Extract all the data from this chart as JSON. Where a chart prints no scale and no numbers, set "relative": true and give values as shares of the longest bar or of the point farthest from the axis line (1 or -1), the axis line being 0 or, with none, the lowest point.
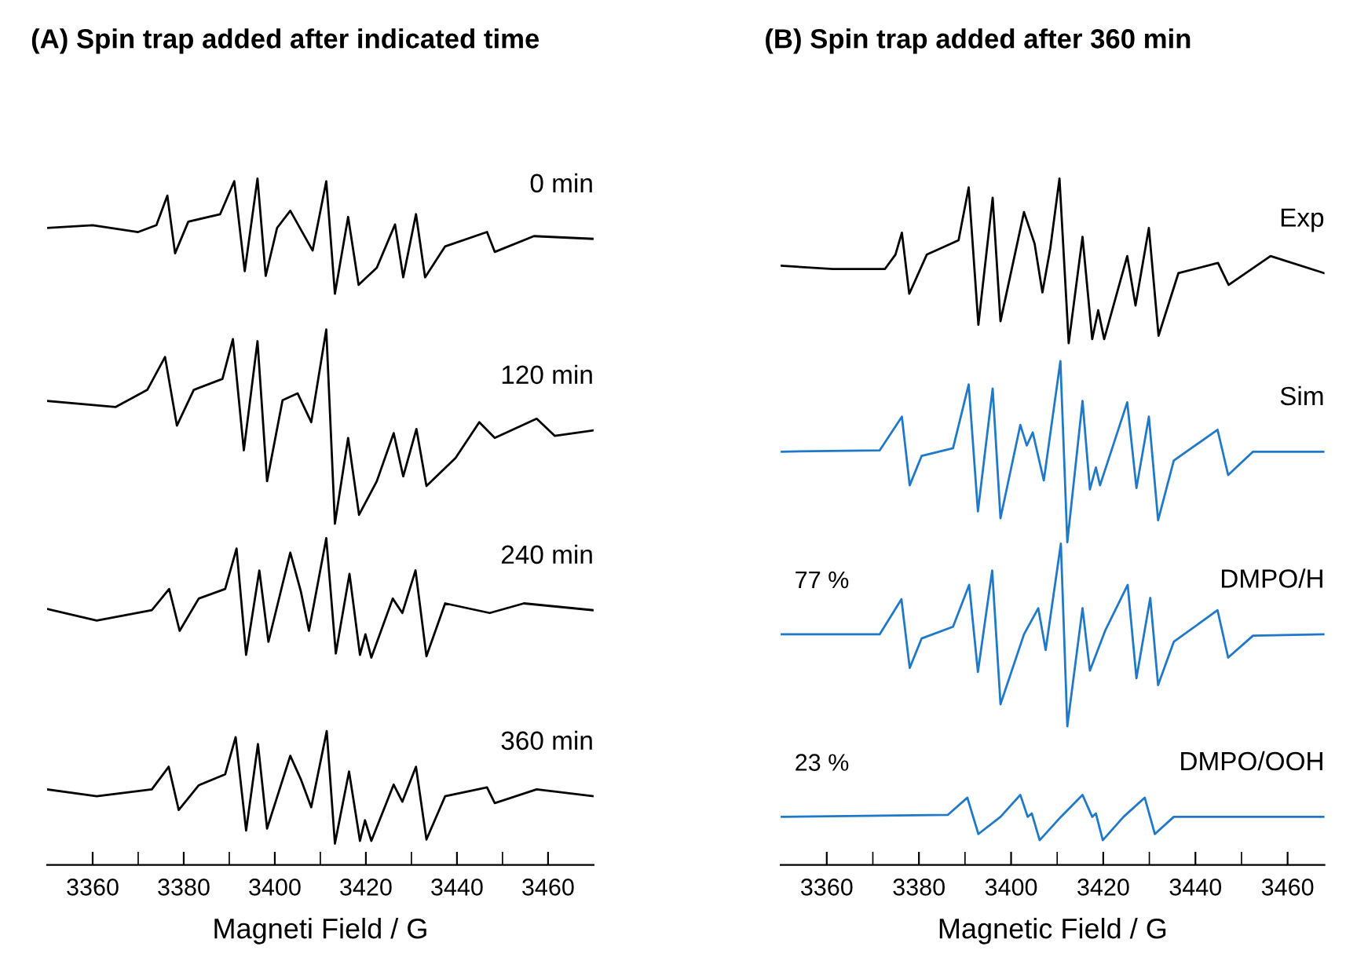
{
  "chart_data": [
    {
      "type": "line",
      "title": "(A) Spin trap added after indicated time",
      "xlabel": "Magneti Field / G",
      "relative": true,
      "tick_labels": "x",
      "grid": false,
      "legend": false,
      "xlim": [
        3350,
        3470
      ],
      "xticks": [
        3360,
        {
          "value": 3370,
          "label": null
        },
        3380,
        {
          "value": 3390,
          "label": null
        },
        3400,
        {
          "value": 3410,
          "label": null
        },
        3420,
        {
          "value": 3430,
          "label": null
        },
        3440,
        {
          "value": 3450,
          "label": null
        },
        3460
      ],
      "series": [
        {
          "name": "0 min",
          "color": "#000000",
          "x": [
            3350,
            3360,
            3370,
            3374,
            3376.4,
            3378.1,
            3381,
            3388,
            3391.1,
            3393.4,
            3396.2,
            3398.0,
            3400.5,
            3403.4,
            3408.3,
            3411.3,
            3413.2,
            3416.1,
            3418.4,
            3422.4,
            3426.4,
            3428.2,
            3431.0,
            3433.0,
            3437.4,
            3446.6,
            3448.3,
            3456.9,
            3470
          ],
          "values": [
            0.928,
            0.932,
            0.922,
            0.932,
            0.975,
            0.891,
            0.937,
            0.948,
            0.996,
            0.865,
            1.0,
            0.858,
            0.928,
            0.953,
            0.895,
            0.996,
            0.832,
            0.944,
            0.845,
            0.87,
            0.933,
            0.856,
            0.948,
            0.856,
            0.901,
            0.922,
            0.893,
            0.916,
            0.912
          ]
        },
        {
          "name": "120 min",
          "color": "#000000",
          "x": [
            3350,
            3365,
            3372,
            3375.9,
            3378.5,
            3382.2,
            3388.5,
            3390.8,
            3393.2,
            3396.2,
            3398.3,
            3401.7,
            3405.0,
            3408.0,
            3411.3,
            3413.2,
            3416.1,
            3418.5,
            3422.4,
            3426.1,
            3428.2,
            3431.1,
            3433.3,
            3439.7,
            3444.9,
            3448.3,
            3457.5,
            3461.5,
            3470
          ],
          "values": [
            0.676,
            0.667,
            0.692,
            0.74,
            0.64,
            0.692,
            0.708,
            0.766,
            0.604,
            0.763,
            0.559,
            0.677,
            0.687,
            0.645,
            0.78,
            0.497,
            0.622,
            0.51,
            0.559,
            0.629,
            0.566,
            0.635,
            0.552,
            0.593,
            0.645,
            0.622,
            0.65,
            0.625,
            0.633
          ]
        },
        {
          "name": "240 min",
          "color": "#000000",
          "x": [
            3350,
            3360.9,
            3373,
            3376.8,
            3379.1,
            3383.3,
            3389.1,
            3391.6,
            3393.7,
            3396.6,
            3398.6,
            3403.4,
            3405.7,
            3407.5,
            3411.3,
            3413.4,
            3416.4,
            3418.7,
            3419.9,
            3421.2,
            3425.9,
            3428.0,
            3430.9,
            3433.3,
            3437.4,
            3447.2,
            3454.7,
            3470
          ],
          "values": [
            0.373,
            0.356,
            0.371,
            0.402,
            0.341,
            0.388,
            0.402,
            0.461,
            0.306,
            0.429,
            0.325,
            0.455,
            0.399,
            0.341,
            0.476,
            0.308,
            0.424,
            0.306,
            0.336,
            0.302,
            0.388,
            0.367,
            0.429,
            0.304,
            0.381,
            0.367,
            0.381,
            0.371
          ]
        },
        {
          "name": "360 min",
          "color": "#000000",
          "x": [
            3350,
            3360.9,
            3373,
            3376.7,
            3378.9,
            3383.3,
            3389.1,
            3391.4,
            3393.7,
            3396.3,
            3398.3,
            3403.4,
            3405.7,
            3408.0,
            3411.4,
            3413.2,
            3416.3,
            3418.7,
            3419.8,
            3421.2,
            3426.1,
            3428.0,
            3431.0,
            3433.3,
            3437.4,
            3446.6,
            3448.3,
            3457.5,
            3470
          ],
          "values": [
            0.11,
            0.1,
            0.11,
            0.143,
            0.08,
            0.116,
            0.132,
            0.186,
            0.05,
            0.176,
            0.053,
            0.159,
            0.125,
            0.084,
            0.195,
            0.031,
            0.136,
            0.035,
            0.065,
            0.035,
            0.117,
            0.092,
            0.143,
            0.037,
            0.1,
            0.113,
            0.09,
            0.11,
            0.1
          ]
        }
      ]
    },
    {
      "type": "line",
      "title": "(B) Spin trap added after 360 min",
      "xlabel": "Magnetic Field / G",
      "relative": true,
      "tick_labels": "x",
      "grid": false,
      "legend": false,
      "xlim": [
        3350,
        3468
      ],
      "xticks": [
        3360,
        {
          "value": 3370,
          "label": null
        },
        3380,
        {
          "value": 3390,
          "label": null
        },
        3400,
        {
          "value": 3410,
          "label": null
        },
        3420,
        {
          "value": 3430,
          "label": null
        },
        3440,
        {
          "value": 3450,
          "label": null
        },
        3460
      ],
      "annotations": [
        "77 %",
        "23 %"
      ],
      "series": [
        {
          "name": "Exp",
          "color": "#000000",
          "x": [
            3350,
            3361.3,
            3372.6,
            3374.9,
            3376.3,
            3377.9,
            3381.7,
            3388.6,
            3390.8,
            3392.9,
            3396.0,
            3397.7,
            3402.8,
            3405.1,
            3406.8,
            3408.5,
            3410.5,
            3412.5,
            3415.5,
            3417.6,
            3418.9,
            3420.2,
            3425.2,
            3427.0,
            3429.9,
            3432.0,
            3436.3,
            3444.9,
            3447.2,
            3456.3,
            3468
          ],
          "values": [
            0.873,
            0.868,
            0.868,
            0.889,
            0.921,
            0.832,
            0.889,
            0.91,
            0.987,
            0.787,
            0.972,
            0.792,
            0.951,
            0.905,
            0.834,
            0.898,
            1.0,
            0.76,
            0.915,
            0.766,
            0.808,
            0.766,
            0.887,
            0.815,
            0.928,
            0.771,
            0.862,
            0.877,
            0.845,
            0.887,
            0.862
          ]
        },
        {
          "name": "Sim",
          "color": "#1f78c8",
          "x": [
            3350,
            3371.5,
            3376.3,
            3378.0,
            3380.6,
            3387.4,
            3390.8,
            3392.8,
            3396.0,
            3397.7,
            3402.0,
            3403.4,
            3404.7,
            3407.1,
            3410.7,
            3412.2,
            3415.5,
            3417.1,
            3418.4,
            3419.3,
            3425.2,
            3427.2,
            3429.9,
            3431.9,
            3435.3,
            3444.8,
            3447.1,
            3452.5,
            3468
          ],
          "values": [
            0.602,
            0.604,
            0.653,
            0.553,
            0.596,
            0.607,
            0.7,
            0.515,
            0.694,
            0.505,
            0.641,
            0.611,
            0.63,
            0.56,
            0.734,
            0.47,
            0.676,
            0.547,
            0.579,
            0.553,
            0.674,
            0.549,
            0.653,
            0.502,
            0.589,
            0.634,
            0.568,
            0.602,
            0.602
          ]
        },
        {
          "name": "DMPO/H",
          "color": "#1f78c8",
          "x": [
            3350,
            3371.5,
            3376.2,
            3378.0,
            3380.6,
            3387.4,
            3390.9,
            3392.8,
            3395.9,
            3397.7,
            3402.8,
            3405.9,
            3407.5,
            3410.8,
            3412.2,
            3415.5,
            3417.1,
            3420.4,
            3425.3,
            3427.2,
            3430.2,
            3431.9,
            3435.3,
            3444.8,
            3447.1,
            3452.5,
            3468
          ],
          "values": [
            0.336,
            0.336,
            0.387,
            0.287,
            0.33,
            0.347,
            0.408,
            0.281,
            0.429,
            0.234,
            0.336,
            0.374,
            0.313,
            0.468,
            0.202,
            0.374,
            0.283,
            0.341,
            0.408,
            0.272,
            0.389,
            0.262,
            0.325,
            0.371,
            0.302,
            0.334,
            0.336
          ]
        },
        {
          "name": "DMPO/OOH",
          "color": "#1f78c8",
          "x": [
            3350,
            3386.3,
            3390.5,
            3392.9,
            3397.7,
            3402.0,
            3403.6,
            3404.5,
            3406.2,
            3410.8,
            3415.5,
            3417.6,
            3418.4,
            3419.9,
            3424.4,
            3429.0,
            3431.2,
            3435.3,
            3468
          ],
          "values": [
            0.07,
            0.073,
            0.098,
            0.045,
            0.07,
            0.102,
            0.07,
            0.075,
            0.036,
            0.07,
            0.102,
            0.07,
            0.075,
            0.036,
            0.07,
            0.098,
            0.045,
            0.07,
            0.07
          ]
        }
      ]
    }
  ]
}
